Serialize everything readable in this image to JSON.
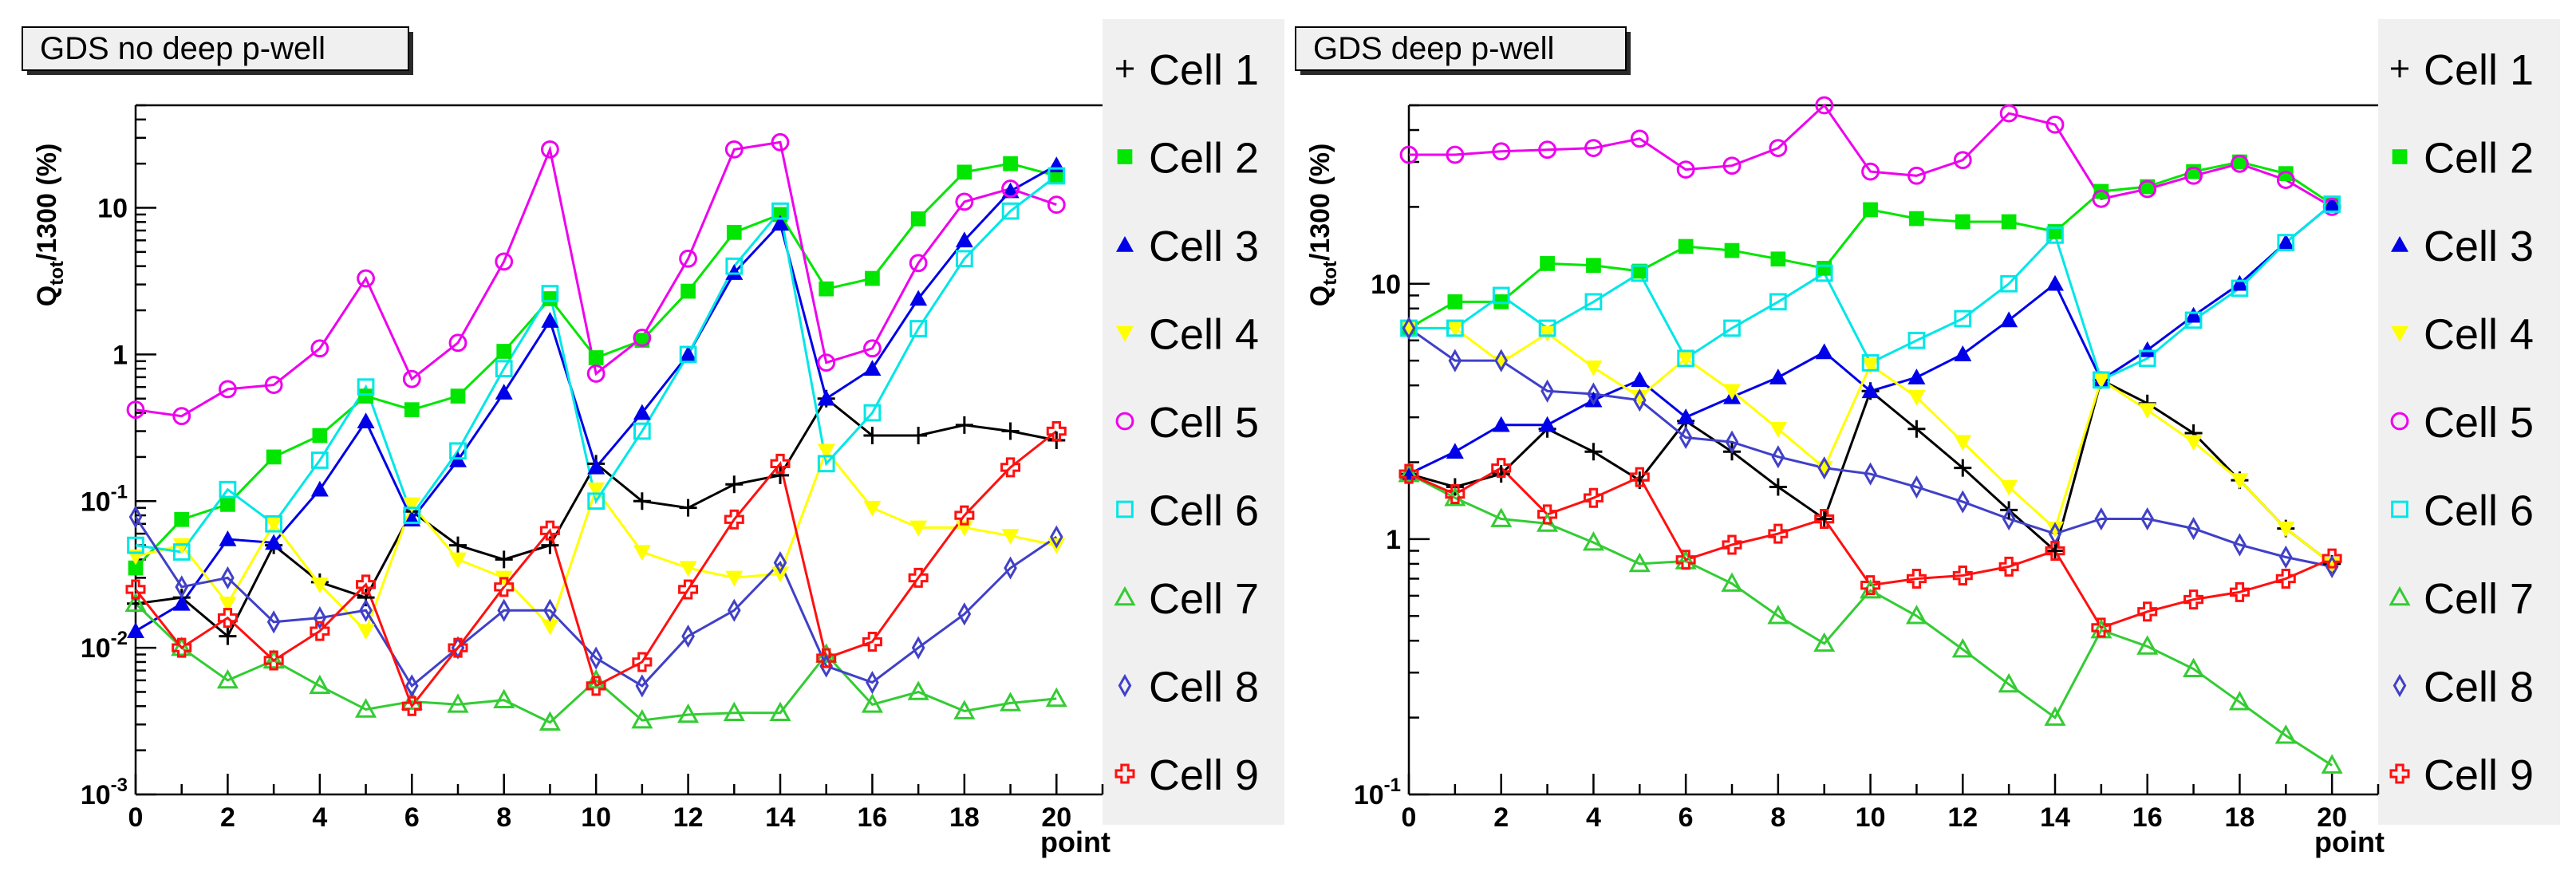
{
  "chart_data": [
    {
      "type": "line",
      "title": "GDS no deep p-well",
      "xlabel": "point",
      "ylabel_main": "Q",
      "ylabel_sub": "tot",
      "ylabel_rest": "/1300 (%)",
      "scale": "log",
      "xlim": [
        0,
        21
      ],
      "ylim": [
        0.001,
        50
      ],
      "x_ticks": [
        0,
        2,
        4,
        6,
        8,
        10,
        12,
        14,
        16,
        18,
        20
      ],
      "y_ticks": [
        {
          "value": 0.001,
          "base": "10",
          "exp": "-3"
        },
        {
          "value": 0.01,
          "base": "10",
          "exp": "-2"
        },
        {
          "value": 0.1,
          "base": "10",
          "exp": "-1"
        },
        {
          "value": 1,
          "base": "1",
          "exp": ""
        },
        {
          "value": 10,
          "base": "10",
          "exp": ""
        }
      ],
      "x": [
        0,
        1,
        2,
        3,
        4,
        5,
        6,
        7,
        8,
        9,
        10,
        11,
        12,
        13,
        14,
        15,
        16,
        17,
        18,
        19,
        20
      ],
      "series": [
        {
          "name": "Cell 1",
          "values": [
            0.02,
            0.022,
            0.012,
            0.05,
            0.028,
            0.022,
            0.085,
            0.05,
            0.04,
            0.05,
            0.18,
            0.1,
            0.09,
            0.13,
            0.15,
            0.5,
            0.28,
            0.28,
            0.33,
            0.3,
            0.26
          ]
        },
        {
          "name": "Cell 2",
          "values": [
            0.035,
            0.075,
            0.095,
            0.2,
            0.28,
            0.52,
            0.42,
            0.52,
            1.05,
            2.4,
            0.95,
            1.25,
            2.7,
            6.8,
            9.0,
            2.8,
            3.3,
            8.4,
            17.5,
            20.0,
            16.5
          ]
        },
        {
          "name": "Cell 3",
          "values": [
            0.013,
            0.02,
            0.055,
            0.052,
            0.12,
            0.35,
            0.075,
            0.19,
            0.55,
            1.7,
            0.17,
            0.4,
            1.0,
            3.6,
            7.8,
            0.5,
            0.8,
            2.4,
            6.0,
            13.0,
            19.5
          ]
        },
        {
          "name": "Cell 4",
          "values": [
            0.042,
            0.05,
            0.02,
            0.07,
            0.027,
            0.013,
            0.095,
            0.04,
            0.03,
            0.014,
            0.12,
            0.045,
            0.035,
            0.03,
            0.032,
            0.22,
            0.09,
            0.066,
            0.066,
            0.058,
            0.05
          ]
        },
        {
          "name": "Cell 5",
          "values": [
            0.42,
            0.38,
            0.58,
            0.62,
            1.1,
            3.3,
            0.68,
            1.2,
            4.3,
            25.0,
            0.74,
            1.3,
            4.5,
            25.0,
            28.0,
            0.88,
            1.1,
            4.2,
            11.0,
            13.5,
            10.5
          ]
        },
        {
          "name": "Cell 6",
          "values": [
            0.05,
            0.045,
            0.12,
            0.07,
            0.19,
            0.6,
            0.08,
            0.22,
            0.8,
            2.6,
            0.1,
            0.3,
            1.0,
            4.0,
            9.5,
            0.18,
            0.4,
            1.5,
            4.5,
            9.5,
            16.5
          ]
        },
        {
          "name": "Cell 7",
          "values": [
            0.02,
            0.01,
            0.006,
            0.0082,
            0.0055,
            0.0038,
            0.0043,
            0.0041,
            0.0044,
            0.0031,
            0.006,
            0.0032,
            0.0035,
            0.0036,
            0.0036,
            0.009,
            0.0041,
            0.005,
            0.0037,
            0.0042,
            0.0045
          ]
        },
        {
          "name": "Cell 8",
          "values": [
            0.078,
            0.026,
            0.03,
            0.015,
            0.016,
            0.018,
            0.0055,
            0.01,
            0.018,
            0.018,
            0.0085,
            0.0055,
            0.012,
            0.018,
            0.038,
            0.0075,
            0.0058,
            0.01,
            0.017,
            0.035,
            0.057
          ]
        },
        {
          "name": "Cell 9",
          "values": [
            0.025,
            0.01,
            0.016,
            0.0082,
            0.013,
            0.027,
            0.004,
            0.01,
            0.026,
            0.063,
            0.0055,
            0.008,
            0.025,
            0.075,
            0.18,
            0.0085,
            0.011,
            0.03,
            0.08,
            0.17,
            0.3
          ]
        }
      ]
    },
    {
      "type": "line",
      "title": "GDS deep p-well",
      "xlabel": "point",
      "ylabel_main": "Q",
      "ylabel_sub": "tot",
      "ylabel_rest": "/1300 (%)",
      "scale": "log",
      "xlim": [
        0,
        21
      ],
      "ylim": [
        0.1,
        50
      ],
      "x_ticks": [
        0,
        2,
        4,
        6,
        8,
        10,
        12,
        14,
        16,
        18,
        20
      ],
      "y_ticks": [
        {
          "value": 0.1,
          "base": "10",
          "exp": "-1"
        },
        {
          "value": 1,
          "base": "1",
          "exp": ""
        },
        {
          "value": 10,
          "base": "10",
          "exp": ""
        }
      ],
      "x": [
        0,
        1,
        2,
        3,
        4,
        5,
        6,
        7,
        8,
        9,
        10,
        11,
        12,
        13,
        14,
        15,
        16,
        17,
        18,
        19,
        20
      ],
      "series": [
        {
          "name": "Cell 1",
          "values": [
            1.8,
            1.6,
            1.8,
            2.7,
            2.2,
            1.7,
            2.9,
            2.2,
            1.6,
            1.2,
            3.8,
            2.7,
            1.9,
            1.3,
            0.9,
            4.2,
            3.4,
            2.6,
            1.7,
            1.1,
            0.8
          ]
        },
        {
          "name": "Cell 2",
          "values": [
            6.7,
            8.5,
            8.5,
            12.0,
            11.8,
            11.2,
            14.0,
            13.5,
            12.5,
            11.5,
            19.5,
            18.0,
            17.5,
            17.5,
            16.0,
            23.0,
            24.0,
            27.5,
            30.0,
            27.0,
            20.5
          ]
        },
        {
          "name": "Cell 3",
          "values": [
            1.8,
            2.2,
            2.8,
            2.8,
            3.5,
            4.2,
            3.0,
            3.6,
            4.3,
            5.4,
            3.8,
            4.3,
            5.3,
            7.2,
            10.0,
            4.2,
            5.5,
            7.5,
            10.0,
            14.5,
            20.5
          ]
        },
        {
          "name": "Cell 4",
          "values": [
            6.7,
            6.7,
            4.9,
            6.4,
            4.7,
            3.6,
            5.1,
            3.8,
            2.7,
            1.9,
            4.8,
            3.6,
            2.4,
            1.6,
            1.1,
            4.2,
            3.2,
            2.4,
            1.7,
            1.1,
            0.8
          ]
        },
        {
          "name": "Cell 5",
          "values": [
            32.0,
            32.0,
            33.0,
            33.5,
            34.0,
            37.0,
            28.0,
            29.0,
            34.0,
            50.0,
            27.5,
            26.5,
            30.5,
            46.5,
            42.0,
            21.5,
            23.5,
            26.5,
            29.5,
            25.5,
            20.0
          ]
        },
        {
          "name": "Cell 6",
          "values": [
            6.7,
            6.7,
            9.0,
            6.7,
            8.5,
            11.0,
            5.1,
            6.7,
            8.5,
            11.0,
            4.9,
            6.0,
            7.3,
            10.0,
            15.5,
            4.2,
            5.1,
            7.2,
            9.6,
            14.5,
            20.5
          ]
        },
        {
          "name": "Cell 7",
          "values": [
            1.8,
            1.45,
            1.2,
            1.15,
            0.97,
            0.8,
            0.82,
            0.67,
            0.5,
            0.39,
            0.63,
            0.5,
            0.37,
            0.27,
            0.2,
            0.44,
            0.38,
            0.31,
            0.23,
            0.17,
            0.13
          ]
        },
        {
          "name": "Cell 8",
          "values": [
            6.7,
            5.0,
            5.0,
            3.8,
            3.7,
            3.5,
            2.5,
            2.4,
            2.1,
            1.9,
            1.8,
            1.6,
            1.4,
            1.2,
            1.05,
            1.2,
            1.2,
            1.1,
            0.95,
            0.85,
            0.78
          ]
        },
        {
          "name": "Cell 9",
          "values": [
            1.8,
            1.5,
            1.9,
            1.25,
            1.45,
            1.75,
            0.83,
            0.95,
            1.05,
            1.2,
            0.66,
            0.7,
            0.72,
            0.78,
            0.9,
            0.45,
            0.52,
            0.58,
            0.62,
            0.7,
            0.84
          ]
        }
      ]
    }
  ],
  "series_style": [
    {
      "name": "Cell 1",
      "color": "#000000",
      "marker": "plus",
      "label": "Cell 1"
    },
    {
      "name": "Cell 2",
      "color": "#00e600",
      "marker": "square-filled",
      "label": "Cell 2"
    },
    {
      "name": "Cell 3",
      "color": "#0000e8",
      "marker": "triangle-up-filled",
      "label": "Cell 3"
    },
    {
      "name": "Cell 4",
      "color": "#ffff00",
      "marker": "triangle-down-filled",
      "label": "Cell 4"
    },
    {
      "name": "Cell 5",
      "color": "#ee00ee",
      "marker": "circle-open",
      "label": "Cell 5"
    },
    {
      "name": "Cell 6",
      "color": "#00e6e6",
      "marker": "square-open",
      "label": "Cell 6"
    },
    {
      "name": "Cell 7",
      "color": "#33cc33",
      "marker": "triangle-up-open",
      "label": "Cell 7"
    },
    {
      "name": "Cell 8",
      "color": "#4040c8",
      "marker": "diamond-open",
      "label": "Cell 8"
    },
    {
      "name": "Cell 9",
      "color": "#ff1010",
      "marker": "cross-open",
      "label": "Cell 9"
    }
  ]
}
